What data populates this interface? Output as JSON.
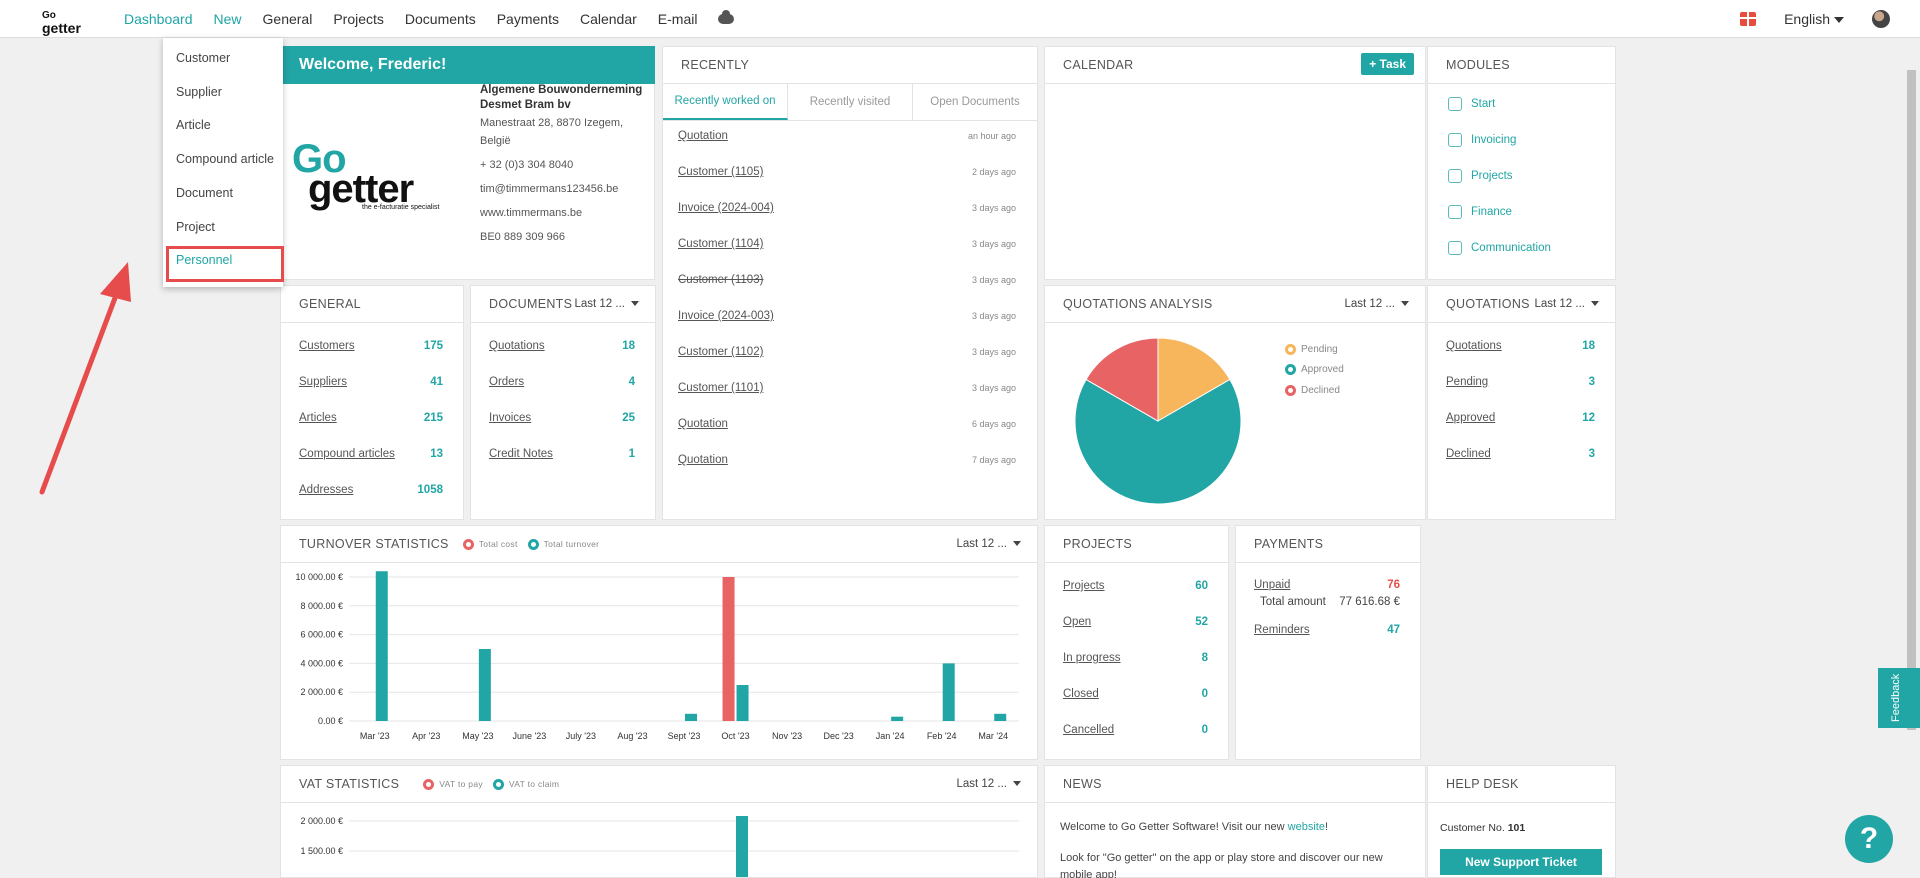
{
  "topbar": {
    "logo_top": "Go",
    "logo_bottom": "getter",
    "nav": [
      "Dashboard",
      "New",
      "General",
      "Projects",
      "Documents",
      "Payments",
      "Calendar",
      "E-mail"
    ],
    "language": "English"
  },
  "new_menu": {
    "items": [
      "Customer",
      "Supplier",
      "Article",
      "Compound article",
      "Document",
      "Project",
      "Personnel"
    ],
    "highlighted": "Personnel"
  },
  "welcome": {
    "title": "Welcome, Frederic!",
    "logo_top": "Go",
    "logo_bottom": "getter",
    "logo_tagline": "the e-facturatie specialist",
    "company_name_1": "Algemene Bouwonderneming",
    "company_name_2": "Desmet Bram bv",
    "address_1": "Manestraat 28, 8870 Izegem,",
    "address_2": "België",
    "phone": "+ 32 (0)3 304 8040",
    "email": "tim@timmermans123456.be",
    "website": "www.timmermans.be",
    "vat": "BE0 889 309 966"
  },
  "recently": {
    "title": "RECENTLY",
    "tabs": [
      "Recently worked on",
      "Recently visited",
      "Open Documents"
    ],
    "rows": [
      {
        "label": "Quotation",
        "time": "an hour ago"
      },
      {
        "label": "Customer (1105)",
        "time": "2 days ago"
      },
      {
        "label": "Invoice (2024-004)",
        "time": "3 days ago"
      },
      {
        "label": "Customer (1104)",
        "time": "3 days ago"
      },
      {
        "label": "Customer (1103)",
        "time": "3 days ago"
      },
      {
        "label": "Invoice (2024-003)",
        "time": "3 days ago"
      },
      {
        "label": "Customer (1102)",
        "time": "3 days ago"
      },
      {
        "label": "Customer (1101)",
        "time": "3 days ago"
      },
      {
        "label": "Quotation",
        "time": "6 days ago"
      },
      {
        "label": "Quotation",
        "time": "7 days ago"
      }
    ]
  },
  "calendar": {
    "title": "CALENDAR",
    "task_button": "+ Task"
  },
  "modules": {
    "title": "MODULES",
    "items": [
      "Start",
      "Invoicing",
      "Projects",
      "Finance",
      "Communication"
    ]
  },
  "general": {
    "title": "GENERAL",
    "rows": [
      {
        "label": "Customers",
        "value": "175"
      },
      {
        "label": "Suppliers",
        "value": "41"
      },
      {
        "label": "Articles",
        "value": "215"
      },
      {
        "label": "Compound articles",
        "value": "13"
      },
      {
        "label": "Addresses",
        "value": "1058"
      }
    ]
  },
  "documents": {
    "title": "DOCUMENTS",
    "period": "Last 12 ...",
    "rows": [
      {
        "label": "Quotations",
        "value": "18"
      },
      {
        "label": "Orders",
        "value": "4"
      },
      {
        "label": "Invoices",
        "value": "25"
      },
      {
        "label": "Credit Notes",
        "value": "1"
      }
    ]
  },
  "quotations_analysis": {
    "title": "QUOTATIONS ANALYSIS",
    "period": "Last 12 ...",
    "legend": [
      "Pending",
      "Approved",
      "Declined"
    ]
  },
  "quotations": {
    "title": "QUOTATIONS",
    "period": "Last 12 ...",
    "rows": [
      {
        "label": "Quotations",
        "value": "18"
      },
      {
        "label": "Pending",
        "value": "3"
      },
      {
        "label": "Approved",
        "value": "12"
      },
      {
        "label": "Declined",
        "value": "3"
      }
    ]
  },
  "turnover": {
    "title": "TURNOVER STATISTICS",
    "period": "Last 12 ...",
    "legend": [
      "Total cost",
      "Total turnover"
    ]
  },
  "projects": {
    "title": "PROJECTS",
    "rows": [
      {
        "label": "Projects",
        "value": "60"
      },
      {
        "label": "Open",
        "value": "52"
      },
      {
        "label": "In progress",
        "value": "8"
      },
      {
        "label": "Closed",
        "value": "0"
      },
      {
        "label": "Cancelled",
        "value": "0"
      }
    ]
  },
  "payments": {
    "title": "PAYMENTS",
    "unpaid_label": "Unpaid",
    "unpaid_value": "76",
    "total_label": "Total amount",
    "total_value": "77 616.68 €",
    "reminders_label": "Reminders",
    "reminders_value": "47"
  },
  "vat": {
    "title": "VAT STATISTICS",
    "period": "Last 12 ...",
    "legend": [
      "VAT to pay",
      "VAT to claim"
    ]
  },
  "news": {
    "title": "NEWS",
    "line1_prefix": "Welcome to Go Getter Software! Visit our new ",
    "line1_link": "website",
    "line1_suffix": "!",
    "line2": "Look for \"Go getter\" on the app or play store and discover our new mobile app!"
  },
  "helpdesk": {
    "title": "HELP DESK",
    "customer_label": "Customer No.",
    "customer_no": "101",
    "button": "New Support Ticket"
  },
  "feedback": "Feedback",
  "help_glyph": "?",
  "colors": {
    "teal": "#21a5a5",
    "red": "#e86363",
    "orange": "#f7b55c"
  },
  "chart_data": [
    {
      "type": "bar",
      "categories": [
        "Mar '23",
        "Apr '23",
        "May '23",
        "June '23",
        "July '23",
        "Aug '23",
        "Sept '23",
        "Oct '23",
        "Nov '23",
        "Dec '23",
        "Jan '24",
        "Feb '24",
        "Mar '24"
      ],
      "series": [
        {
          "name": "Total cost",
          "color": "#e86363",
          "values": [
            0,
            0,
            0,
            0,
            0,
            0,
            0,
            10000,
            0,
            0,
            0,
            0,
            0
          ]
        },
        {
          "name": "Total turnover",
          "color": "#21a5a5",
          "values": [
            10400,
            0,
            5000,
            0,
            0,
            0,
            500,
            2500,
            0,
            0,
            300,
            4000,
            500
          ]
        }
      ],
      "yticks": [
        "10 000.00 €",
        "8 000.00 €",
        "6 000.00 €",
        "4 000.00 €",
        "2 000.00 €",
        "0.00 €"
      ],
      "ylim": [
        0,
        10000
      ]
    },
    {
      "type": "pie",
      "labels": [
        "Pending",
        "Approved",
        "Declined"
      ],
      "values": [
        3,
        12,
        3
      ],
      "colors": [
        "#f7b55c",
        "#21a5a5",
        "#e86363"
      ]
    },
    {
      "type": "bar",
      "categories": [],
      "series": [
        {
          "name": "VAT to pay",
          "color": "#e86363",
          "values": []
        },
        {
          "name": "VAT to claim",
          "color": "#21a5a5",
          "values": []
        }
      ],
      "yticks": [
        "2 000.00 €",
        "1 500.00 €"
      ]
    }
  ]
}
